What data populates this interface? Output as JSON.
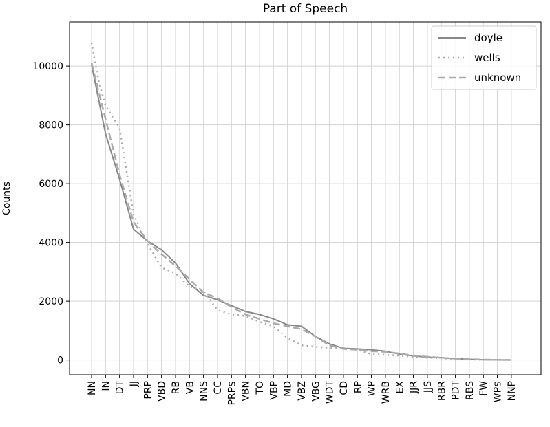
{
  "chart_data": {
    "type": "line",
    "title": "Part of Speech",
    "xlabel": "",
    "ylabel": "Counts",
    "categories": [
      "NN",
      "IN",
      "DT",
      "JJ",
      "PRP",
      "VBD",
      "RB",
      "VB",
      "NNS",
      "CC",
      "PRP$",
      "VBN",
      "TO",
      "VBP",
      "MD",
      "VBZ",
      "VBG",
      "WDT",
      "CD",
      "RP",
      "WP",
      "WRB",
      "EX",
      "JJR",
      "JJS",
      "RBR",
      "PDT",
      "RBS",
      "FW",
      "WP$",
      "NNP"
    ],
    "ylim": [
      -500,
      11500
    ],
    "yticks": [
      0,
      2000,
      4000,
      6000,
      8000,
      10000
    ],
    "grid": true,
    "legend_position": "top-right",
    "series": [
      {
        "name": "doyle",
        "style": "solid",
        "color": "#888888",
        "x": [
          0,
          1,
          2,
          3,
          4,
          5,
          6,
          7,
          8,
          9,
          10,
          11,
          12,
          13,
          14,
          15,
          16,
          17,
          18,
          19,
          20,
          21,
          22,
          23,
          24,
          25,
          26,
          27,
          28,
          29,
          30
        ],
        "values": [
          10050,
          7700,
          6150,
          4450,
          4050,
          3750,
          3300,
          2600,
          2200,
          2050,
          1850,
          1650,
          1550,
          1400,
          1200,
          1150,
          800,
          550,
          400,
          380,
          350,
          300,
          200,
          140,
          100,
          80,
          50,
          25,
          10,
          5,
          2
        ]
      },
      {
        "name": "wells",
        "style": "dotted",
        "color": "#aaaaaa",
        "x": [
          0,
          0.5,
          1,
          2,
          3,
          4,
          5,
          6,
          7,
          8,
          9,
          10,
          11,
          12,
          13,
          14,
          15,
          16,
          17,
          18,
          19,
          20,
          21,
          22,
          23,
          24,
          25,
          26,
          27,
          28,
          29,
          30
        ],
        "values": [
          10800,
          9500,
          8650,
          7900,
          4950,
          3950,
          3150,
          2950,
          2500,
          2350,
          1700,
          1550,
          1500,
          1300,
          1150,
          750,
          500,
          450,
          420,
          400,
          350,
          200,
          180,
          150,
          110,
          80,
          60,
          40,
          20,
          10,
          5,
          2
        ]
      },
      {
        "name": "unknown",
        "style": "dashed",
        "color": "#aaaaaa",
        "x": [
          0,
          1,
          2,
          3,
          4,
          5,
          6,
          7,
          8,
          9,
          10,
          11,
          12,
          13,
          14,
          15,
          16,
          17,
          18,
          19,
          20,
          21,
          22,
          23,
          24,
          25,
          26,
          27,
          28,
          29,
          30
        ],
        "values": [
          10100,
          8200,
          6300,
          4700,
          4050,
          3600,
          3200,
          2750,
          2300,
          2100,
          1800,
          1550,
          1400,
          1250,
          1150,
          1050,
          800,
          500,
          380,
          350,
          300,
          280,
          220,
          150,
          110,
          80,
          50,
          30,
          15,
          8,
          3
        ]
      }
    ]
  }
}
